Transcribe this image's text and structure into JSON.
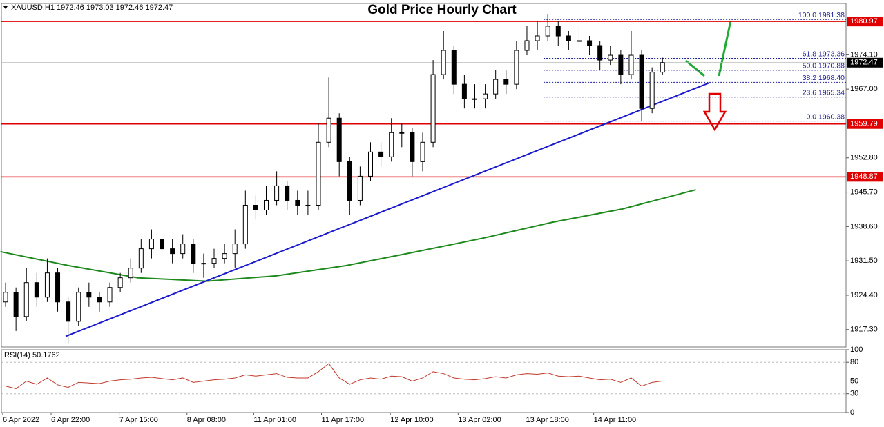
{
  "chart_data": {
    "type": "candlestick",
    "title": "Gold Price Hourly Chart",
    "header": "XAUUSD,H1  1972.46 1973.03 1972.46 1972.47",
    "xlim": [
      -0.4,
      80.6
    ],
    "xticks": [
      {
        "value": -0.27,
        "label": "6 Apr 2022"
      },
      {
        "value": 4.37,
        "label": "6 Apr 22:00"
      },
      {
        "value": 10.9,
        "label": "7 Apr 15:00"
      },
      {
        "value": 17.4,
        "label": "8 Apr 08:00"
      },
      {
        "value": 23.8,
        "label": "11 Apr 01:00"
      },
      {
        "value": 30.3,
        "label": "11 Apr 17:00"
      },
      {
        "value": 36.9,
        "label": "12 Apr 10:00"
      },
      {
        "value": 43.4,
        "label": "13 Apr 02:00"
      },
      {
        "value": 49.9,
        "label": "13 Apr 18:00"
      },
      {
        "value": 56.4,
        "label": "14 Apr 11:00"
      }
    ],
    "ylim": [
      1913.7,
      1984.7
    ],
    "yticks": [
      {
        "value": 1917.3,
        "label": "1917.30"
      },
      {
        "value": 1924.4,
        "label": "1924.40"
      },
      {
        "value": 1931.5,
        "label": "1931.50"
      },
      {
        "value": 1938.6,
        "label": "1938.60"
      },
      {
        "value": 1945.7,
        "label": "1945.70"
      },
      {
        "value": 1952.8,
        "label": "1952.80"
      },
      {
        "value": 1967,
        "label": "1967.00"
      },
      {
        "value": 1974.1,
        "label": "1974.10"
      }
    ],
    "open": [
      1923,
      1925,
      1920,
      1927,
      1924,
      1929,
      1923,
      1919,
      1925,
      1924,
      1923,
      1926,
      1928,
      1930,
      1934,
      1936,
      1934,
      1933,
      1935,
      1931,
      1931,
      1932,
      1933,
      1935,
      1943,
      1942,
      1944,
      1947,
      1944,
      1943,
      1943,
      1956,
      1961,
      1952,
      1944,
      1949,
      1954,
      1953,
      1958,
      1958,
      1952,
      1956,
      1970,
      1975,
      1968,
      1965,
      1965,
      1966,
      1969,
      1968,
      1975,
      1977,
      1978,
      1980,
      1978,
      1977,
      1977,
      1976,
      1973,
      1974,
      1970,
      1974,
      1963,
      1970.5
    ],
    "high": [
      1927,
      1926,
      1930,
      1929,
      1932,
      1930,
      1924,
      1926,
      1927,
      1925,
      1927,
      1929,
      1932,
      1936,
      1938,
      1937,
      1936,
      1937,
      1936,
      1933,
      1934,
      1935,
      1938,
      1946,
      1945,
      1947,
      1950,
      1948,
      1946,
      1946,
      1960,
      1969.4,
      1962,
      1953,
      1951,
      1956,
      1956,
      1961,
      1960,
      1959,
      1958,
      1973,
      1979,
      1976,
      1970,
      1968,
      1968,
      1971,
      1971,
      1977,
      1980,
      1981,
      1982.5,
      1981,
      1979,
      1980,
      1978,
      1977,
      1976,
      1975,
      1979,
      1975,
      1971.5,
      1973.5
    ],
    "low": [
      1922,
      1917,
      1919,
      1922,
      1923,
      1921,
      1914.5,
      1918,
      1922,
      1921,
      1922,
      1925,
      1927,
      1929,
      1932,
      1932,
      1931,
      1932,
      1929,
      1928,
      1930,
      1931,
      1930,
      1934,
      1940,
      1941,
      1943,
      1942,
      1941,
      1941,
      1942,
      1955,
      1949,
      1941,
      1943,
      1948,
      1951,
      1952,
      1955,
      1949,
      1950,
      1955,
      1969,
      1966,
      1963,
      1963,
      1963,
      1965,
      1966,
      1967,
      1974,
      1975,
      1977,
      1976,
      1975,
      1976,
      1974,
      1971,
      1972,
      1968,
      1969,
      1960.4,
      1962,
      1970
    ],
    "close": [
      1925,
      1920,
      1927,
      1924,
      1929,
      1923,
      1919,
      1925,
      1924,
      1923,
      1926,
      1928,
      1930,
      1934,
      1936,
      1934,
      1933,
      1935,
      1931,
      1931,
      1932,
      1933,
      1935,
      1943,
      1942,
      1944,
      1947,
      1944,
      1943,
      1943,
      1956,
      1961,
      1952,
      1944,
      1949,
      1954,
      1953,
      1958,
      1958,
      1952,
      1956,
      1970,
      1975,
      1968,
      1965,
      1965,
      1966,
      1969,
      1968,
      1975,
      1977,
      1978,
      1980,
      1978,
      1977,
      1977,
      1976,
      1973,
      1974,
      1970,
      1974,
      1963,
      1970.5,
      1972.47
    ],
    "moving_average": {
      "color": "#1e8a1e",
      "x": [
        -0.5,
        6.1,
        12.7,
        19.3,
        25.96,
        32.6,
        39.2,
        45.8,
        52.5,
        59.1,
        66.2
      ],
      "values": [
        1933.4,
        1930.5,
        1928,
        1927.3,
        1928.4,
        1930.5,
        1933.3,
        1936.2,
        1939.5,
        1942.2,
        1946.2
      ]
    },
    "trendline": {
      "color": "#1a1acc",
      "x": [
        5.76,
        67.5
      ],
      "values": [
        1915.9,
        1968.3
      ]
    },
    "levels": {
      "color": "#e00000",
      "values": [
        1980.97,
        1959.79,
        1948.87
      ]
    },
    "current_price": 1972.47,
    "fib_levels": {
      "x_start": 51.6,
      "items": [
        {
          "label": "100.0 1981.38",
          "value": 1981.38
        },
        {
          "label": "61.8 1973.36",
          "value": 1973.36
        },
        {
          "label": "50.0 1970.88",
          "value": 1970.88
        },
        {
          "label": "38.2 1968.40",
          "value": 1968.4
        },
        {
          "label": "23.6 1965.34",
          "value": 1965.34
        },
        {
          "label": "0.0 1960.38",
          "value": 1960.38
        }
      ]
    },
    "rsi": {
      "label": "RSI(14) 50.1762",
      "color": "#c0392b",
      "ylim": [
        0,
        100
      ],
      "yticks": [
        0,
        30,
        50,
        80,
        100
      ],
      "dashed": [
        30,
        50,
        80
      ],
      "values": [
        42,
        38,
        50,
        45,
        55,
        44,
        40,
        48,
        47,
        46,
        50,
        52,
        53,
        55,
        56,
        54,
        52,
        55,
        48,
        50,
        52,
        53,
        55,
        60,
        58,
        60,
        62,
        56,
        55,
        55,
        65,
        78,
        55,
        45,
        52,
        55,
        53,
        58,
        57,
        50,
        55,
        65,
        62,
        55,
        53,
        52,
        54,
        57,
        55,
        60,
        62,
        61,
        63,
        58,
        57,
        58,
        55,
        52,
        53,
        48,
        55,
        42,
        48,
        50.18
      ]
    }
  }
}
